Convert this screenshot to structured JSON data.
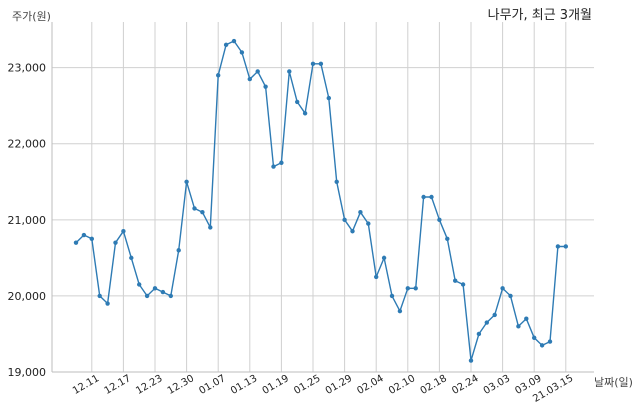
{
  "chart_data": {
    "type": "line",
    "title": "나무가, 최근 3개월",
    "ylabel": "주가(원)",
    "xlabel": "날짜(일)",
    "ylim": [
      19000,
      23600
    ],
    "yticks": [
      19000,
      20000,
      21000,
      22000,
      23000
    ],
    "ytick_labels": [
      "19,000",
      "20,000",
      "21,000",
      "22,000",
      "23,000"
    ],
    "xtick_labels": [
      "12.11",
      "12.17",
      "12.23",
      "12.30",
      "01.07",
      "01.13",
      "01.19",
      "01.25",
      "01.29",
      "02.04",
      "02.10",
      "02.18",
      "02.24",
      "03.03",
      "03.09",
      "21.03.15"
    ],
    "xtick_positions": [
      2,
      6,
      10,
      14,
      18,
      22,
      26,
      30,
      34,
      38,
      42,
      46,
      50,
      54,
      58,
      62
    ],
    "grid": true,
    "line_color": "#2e7bb4",
    "series": [
      {
        "values": [
          20700,
          20800,
          20750,
          20000,
          19900,
          20700,
          20850,
          20500,
          20150,
          20000,
          20100,
          20050,
          20000,
          20600,
          21500,
          21150,
          21100,
          20900,
          22900,
          23300,
          23350,
          23200,
          22850,
          22950,
          22750,
          21700,
          21750,
          22950,
          22550,
          22400,
          23050,
          23050,
          22600,
          21500,
          21000,
          20850,
          21100,
          20950,
          20250,
          20500,
          20000,
          19800,
          20100,
          20100,
          21300,
          21300,
          21000,
          20750,
          20200,
          20150,
          19150,
          19500,
          19650,
          19750,
          20100,
          20000,
          19600,
          19700,
          19450,
          19350,
          19400,
          20650,
          20650
        ]
      }
    ]
  }
}
